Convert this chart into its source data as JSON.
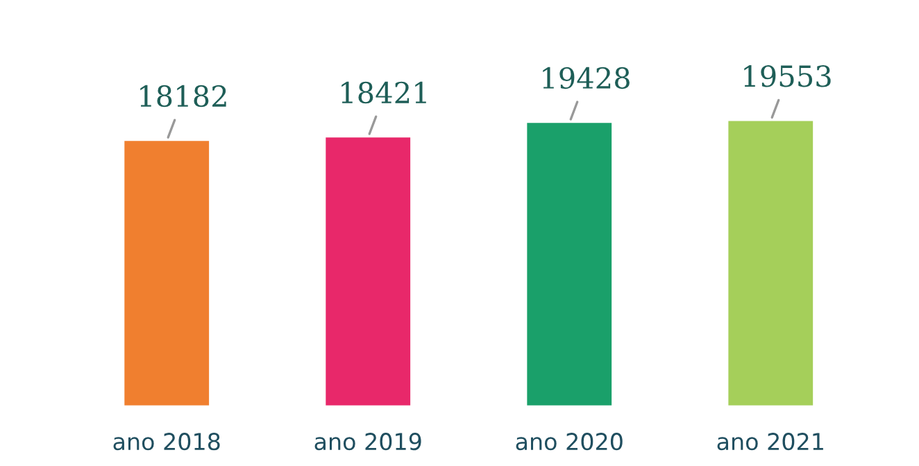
{
  "chart_data": {
    "type": "bar",
    "categories": [
      "ano 2018",
      "ano 2019",
      "ano 2020",
      "ano 2021"
    ],
    "values": [
      18182,
      18421,
      19428,
      19553
    ],
    "colors": [
      "#f07f2f",
      "#e8286a",
      "#1aa06a",
      "#a5cf5a"
    ],
    "data_labels": true,
    "grid": false,
    "legend": false
  }
}
